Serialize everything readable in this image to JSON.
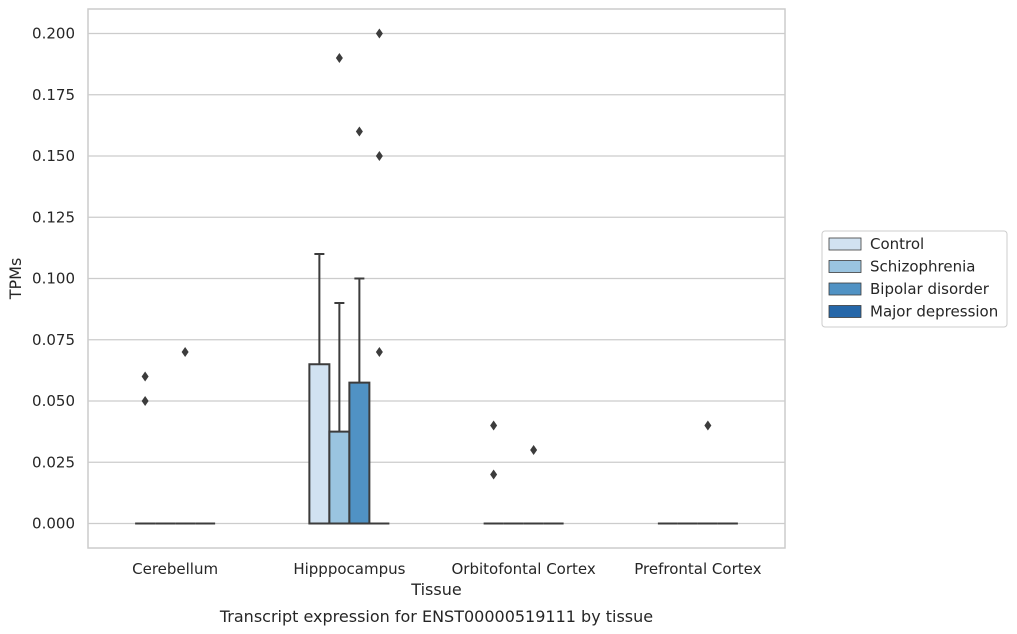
{
  "chart_data": {
    "type": "box",
    "caption": "Transcript expression for ENST00000519111 by tissue",
    "xlabel": "Tissue",
    "ylabel": "TPMs",
    "ylim": [
      -0.01,
      0.21
    ],
    "yticks": [
      "0.000",
      "0.025",
      "0.050",
      "0.075",
      "0.100",
      "0.125",
      "0.150",
      "0.175",
      "0.200"
    ],
    "grid": true,
    "legend_position": "right",
    "categories": [
      "Cerebellum",
      "Hipppocampus",
      "Orbitofontal Cortex",
      "Prefrontal Cortex"
    ],
    "series": [
      {
        "name": "Control",
        "color": "#d1e2f1"
      },
      {
        "name": "Schizophrenia",
        "color": "#9ac4e0"
      },
      {
        "name": "Bipolar disorder",
        "color": "#5092c4"
      },
      {
        "name": "Major depression",
        "color": "#2567a9"
      }
    ],
    "boxes": [
      {
        "category": "Cerebellum",
        "series": "Control",
        "q1": 0,
        "median": 0,
        "q3": 0,
        "whisker_low": 0,
        "whisker_high": 0,
        "outliers": [
          0.05,
          0.06
        ]
      },
      {
        "category": "Cerebellum",
        "series": "Schizophrenia",
        "q1": 0,
        "median": 0,
        "q3": 0,
        "whisker_low": 0,
        "whisker_high": 0,
        "outliers": []
      },
      {
        "category": "Cerebellum",
        "series": "Bipolar disorder",
        "q1": 0,
        "median": 0,
        "q3": 0,
        "whisker_low": 0,
        "whisker_high": 0,
        "outliers": [
          0.07
        ]
      },
      {
        "category": "Cerebellum",
        "series": "Major depression",
        "q1": 0,
        "median": 0,
        "q3": 0,
        "whisker_low": 0,
        "whisker_high": 0,
        "outliers": []
      },
      {
        "category": "Hipppocampus",
        "series": "Control",
        "q1": 0,
        "median": 0,
        "q3": 0.065,
        "whisker_low": 0,
        "whisker_high": 0.11,
        "outliers": []
      },
      {
        "category": "Hipppocampus",
        "series": "Schizophrenia",
        "q1": 0,
        "median": 0,
        "q3": 0.0375,
        "whisker_low": 0,
        "whisker_high": 0.09,
        "outliers": [
          0.19
        ]
      },
      {
        "category": "Hipppocampus",
        "series": "Bipolar disorder",
        "q1": 0,
        "median": 0,
        "q3": 0.0575,
        "whisker_low": 0,
        "whisker_high": 0.1,
        "outliers": [
          0.16
        ]
      },
      {
        "category": "Hipppocampus",
        "series": "Major depression",
        "q1": 0,
        "median": 0,
        "q3": 0,
        "whisker_low": 0,
        "whisker_high": 0,
        "outliers": [
          0.07,
          0.15,
          0.2
        ]
      },
      {
        "category": "Orbitofontal Cortex",
        "series": "Control",
        "q1": 0,
        "median": 0,
        "q3": 0,
        "whisker_low": 0,
        "whisker_high": 0,
        "outliers": [
          0.02,
          0.04
        ]
      },
      {
        "category": "Orbitofontal Cortex",
        "series": "Schizophrenia",
        "q1": 0,
        "median": 0,
        "q3": 0,
        "whisker_low": 0,
        "whisker_high": 0,
        "outliers": []
      },
      {
        "category": "Orbitofontal Cortex",
        "series": "Bipolar disorder",
        "q1": 0,
        "median": 0,
        "q3": 0,
        "whisker_low": 0,
        "whisker_high": 0,
        "outliers": [
          0.03
        ]
      },
      {
        "category": "Orbitofontal Cortex",
        "series": "Major depression",
        "q1": 0,
        "median": 0,
        "q3": 0,
        "whisker_low": 0,
        "whisker_high": 0,
        "outliers": []
      },
      {
        "category": "Prefrontal Cortex",
        "series": "Control",
        "q1": 0,
        "median": 0,
        "q3": 0,
        "whisker_low": 0,
        "whisker_high": 0,
        "outliers": []
      },
      {
        "category": "Prefrontal Cortex",
        "series": "Schizophrenia",
        "q1": 0,
        "median": 0,
        "q3": 0,
        "whisker_low": 0,
        "whisker_high": 0,
        "outliers": []
      },
      {
        "category": "Prefrontal Cortex",
        "series": "Bipolar disorder",
        "q1": 0,
        "median": 0,
        "q3": 0,
        "whisker_low": 0,
        "whisker_high": 0,
        "outliers": [
          0.04
        ]
      },
      {
        "category": "Prefrontal Cortex",
        "series": "Major depression",
        "q1": 0,
        "median": 0,
        "q3": 0,
        "whisker_low": 0,
        "whisker_high": 0,
        "outliers": []
      }
    ]
  }
}
